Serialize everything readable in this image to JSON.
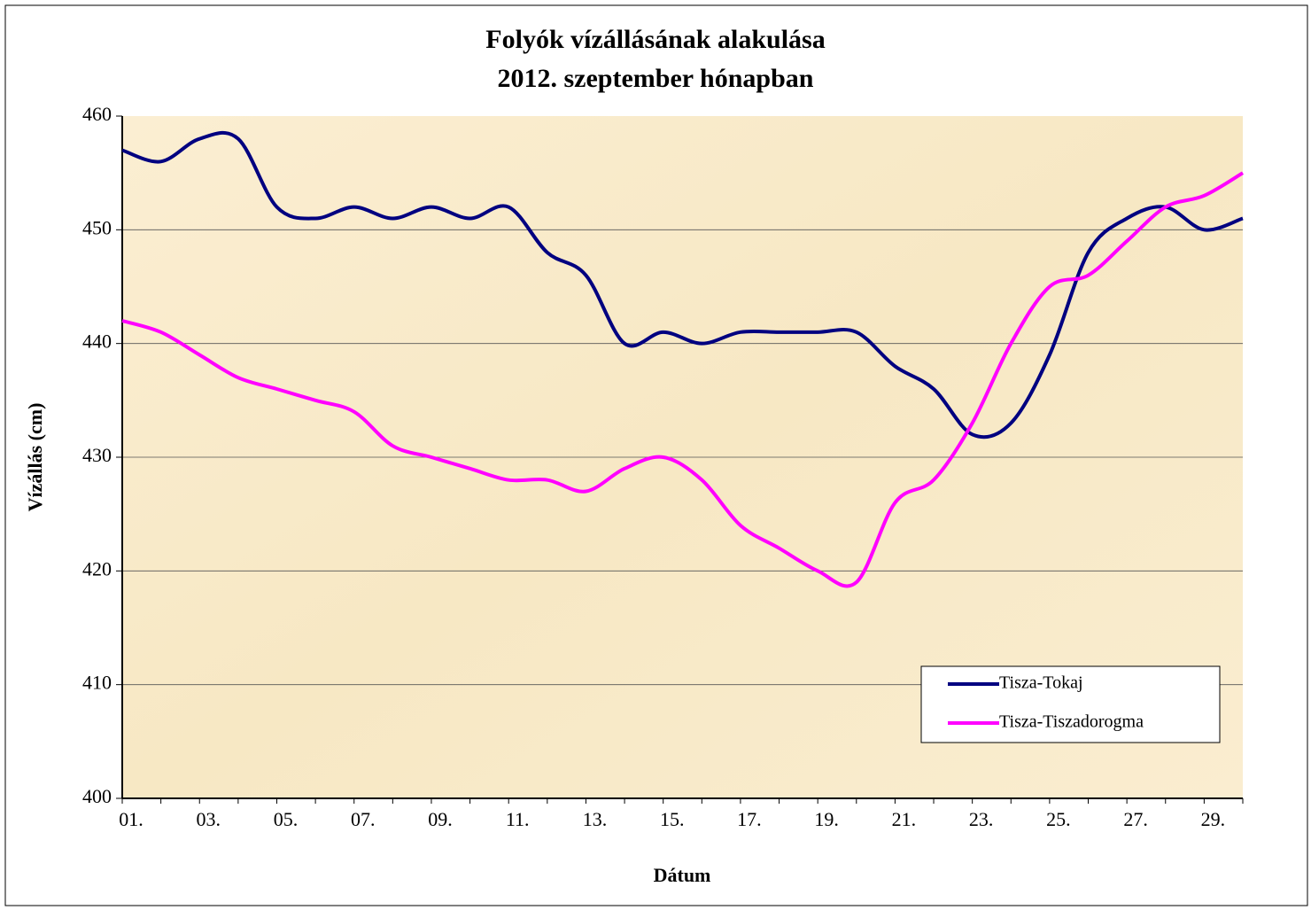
{
  "chart_data": {
    "type": "line",
    "title": [
      "Folyók vízállásának alakulása",
      "2012. szeptember hónapban"
    ],
    "xlabel": "Dátum",
    "ylabel": "Vízállás (cm)",
    "categories": [
      "01.",
      null,
      "03.",
      null,
      "05.",
      null,
      "07.",
      null,
      "09.",
      null,
      "11.",
      null,
      "13.",
      null,
      "15.",
      null,
      "17.",
      null,
      "19.",
      null,
      "21.",
      null,
      "23.",
      null,
      "25.",
      null,
      "27.",
      null,
      "29.",
      null
    ],
    "series": [
      {
        "name": "Tisza-Tokaj",
        "color": "#000080",
        "values": [
          457,
          456,
          458,
          458,
          452,
          451,
          452,
          451,
          452,
          451,
          452,
          448,
          446,
          440,
          441,
          440,
          441,
          441,
          441,
          441,
          438,
          436,
          432,
          433,
          439,
          448,
          451,
          452,
          450,
          451
        ]
      },
      {
        "name": "Tisza-Tiszadorogma",
        "color": "#ff00ff",
        "values": [
          442,
          441,
          439,
          437,
          436,
          435,
          434,
          431,
          430,
          429,
          428,
          428,
          427,
          429,
          430,
          428,
          424,
          422,
          420,
          419,
          426,
          428,
          433,
          440,
          445,
          446,
          449,
          452,
          453,
          455
        ]
      }
    ],
    "ylim": [
      400,
      460
    ],
    "yticks": [
      400,
      410,
      420,
      430,
      440,
      450,
      460
    ],
    "grid": true,
    "legend": "lower right"
  }
}
